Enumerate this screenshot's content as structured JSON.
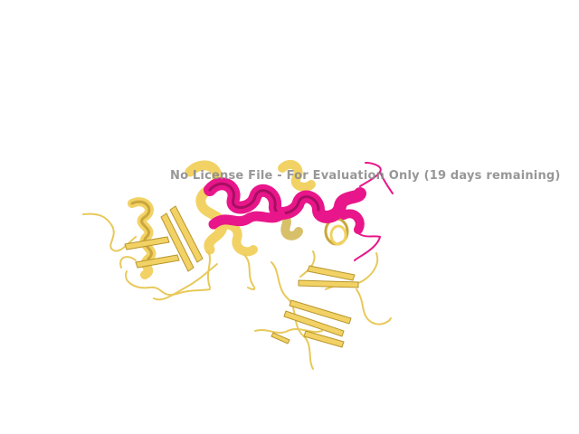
{
  "watermark": {
    "text": "No License File - For Evaluation Only (19 days remaining)"
  },
  "colors": {
    "background": "#ffffff",
    "chain_a": "#f2d264",
    "chain_a_shade": "#c9a73c",
    "chain_b": "#e8168a",
    "chain_b_shade": "#a60f62",
    "watermark": "#8c8c8c"
  },
  "molecule": {
    "representation": "cartoon",
    "chains": [
      {
        "id": "A",
        "color_name": "yellow",
        "elements": [
          "helix",
          "beta-sheet",
          "loop"
        ]
      },
      {
        "id": "B",
        "color_name": "magenta",
        "elements": [
          "helix",
          "loop"
        ]
      }
    ]
  }
}
